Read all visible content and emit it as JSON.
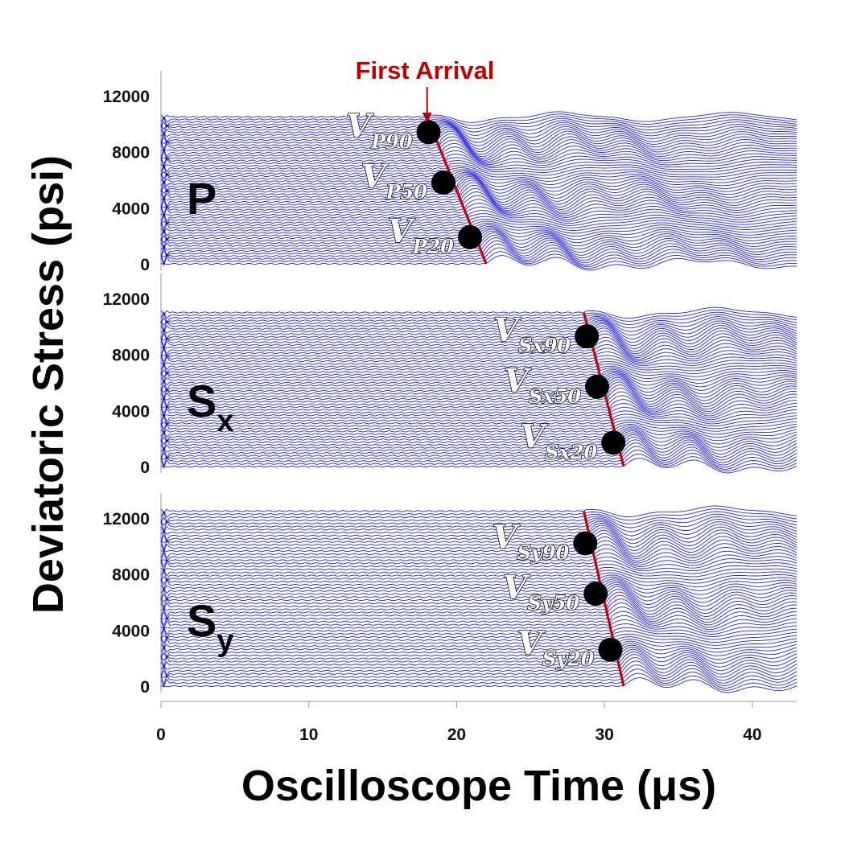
{
  "chart_data": {
    "type": "waterfall",
    "xlabel": "Oscilloscope Time (μs)",
    "ylabel": "Deviatoric Stress (psi)",
    "xlim": [
      0,
      43
    ],
    "x_ticks": [
      "0",
      "10",
      "20",
      "30",
      "40"
    ],
    "y_ticks": [
      "0",
      "4000",
      "8000",
      "12000"
    ],
    "annotation": {
      "text": "First Arrival",
      "color": "#c00000",
      "x_time": 18
    },
    "trace_color": "#0000e0",
    "arrival_line_color": "#c00000",
    "marker_color": "#000000",
    "panels": [
      {
        "label": "P",
        "subscript": "",
        "ylim": [
          0,
          13500
        ],
        "max_stress": 10500,
        "arrival_line": [
          [
            18,
            10500
          ],
          [
            22,
            0
          ]
        ],
        "markers": [
          {
            "label": "V",
            "subscript": "P90",
            "time": 18.1,
            "stress": 9400
          },
          {
            "label": "V",
            "subscript": "P50",
            "time": 19.1,
            "stress": 5800
          },
          {
            "label": "V",
            "subscript": "P20",
            "time": 20.9,
            "stress": 1900
          }
        ]
      },
      {
        "label": "S",
        "subscript": "x",
        "ylim": [
          0,
          13500
        ],
        "max_stress": 11000,
        "arrival_line": [
          [
            28.6,
            11000
          ],
          [
            31.3,
            0
          ]
        ],
        "markers": [
          {
            "label": "V",
            "subscript": "Sx90",
            "time": 28.8,
            "stress": 9300
          },
          {
            "label": "V",
            "subscript": "Sx50",
            "time": 29.5,
            "stress": 5700
          },
          {
            "label": "V",
            "subscript": "Sx20",
            "time": 30.6,
            "stress": 1700
          }
        ]
      },
      {
        "label": "S",
        "subscript": "y",
        "ylim": [
          0,
          13500
        ],
        "max_stress": 12500,
        "arrival_line": [
          [
            28.6,
            12500
          ],
          [
            31.3,
            0
          ]
        ],
        "markers": [
          {
            "label": "V",
            "subscript": "Sy90",
            "time": 28.7,
            "stress": 10200
          },
          {
            "label": "V",
            "subscript": "Sy50",
            "time": 29.4,
            "stress": 6600
          },
          {
            "label": "V",
            "subscript": "Sy20",
            "time": 30.4,
            "stress": 2600
          }
        ]
      }
    ]
  }
}
